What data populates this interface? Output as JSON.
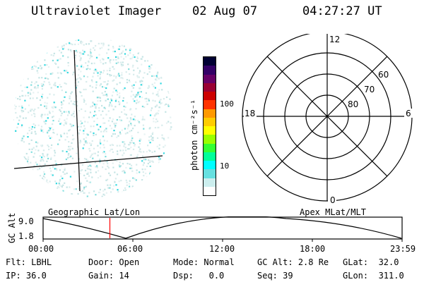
{
  "header": {
    "title": "Ultraviolet Imager",
    "date": "02 Aug 07",
    "time": "04:27:27 UT"
  },
  "colorbar": {
    "unit_label": "photon cm⁻²s⁻¹",
    "ticks": [
      "100",
      "10"
    ],
    "colors": [
      "#000033",
      "#330066",
      "#660066",
      "#990033",
      "#cc0000",
      "#ff3300",
      "#ff9900",
      "#ffcc00",
      "#ffff00",
      "#99ff00",
      "#33ff33",
      "#00ff99",
      "#00ffff",
      "#66e0e0",
      "#cceeee",
      "#ffffff"
    ]
  },
  "polar_plot": {
    "mlt_labels": {
      "top": "12",
      "bottom": "0",
      "left": "18",
      "right": "6"
    },
    "lat_labels": [
      "60",
      "70",
      "80"
    ]
  },
  "timeline": {
    "left_title": "Geographic Lat/Lon",
    "right_title": "Apex MLat/MLT",
    "axis_label": "GC Alt",
    "y_ticks": [
      "9.0",
      "1.8"
    ],
    "x_ticks": [
      "00:00",
      "06:00",
      "12:00",
      "18:00",
      "23:59"
    ],
    "current_time_fraction": 0.186,
    "marker_color": "#ff0000"
  },
  "status": {
    "row1": [
      {
        "key": "Flt:",
        "value": "LBHL"
      },
      {
        "key": "Door:",
        "value": "Open"
      },
      {
        "key": "Mode:",
        "value": "Normal"
      },
      {
        "key": "GC Alt:",
        "value": "2.8 Re"
      },
      {
        "key": "GLat:",
        "value": "32.0"
      }
    ],
    "row2": [
      {
        "key": "IP:",
        "value": "36.0"
      },
      {
        "key": "Gain:",
        "value": "14"
      },
      {
        "key": "Dsp:",
        "value": "0.0"
      },
      {
        "key": "Seq:",
        "value": "39"
      },
      {
        "key": "GLon:",
        "value": "311.0"
      }
    ]
  }
}
